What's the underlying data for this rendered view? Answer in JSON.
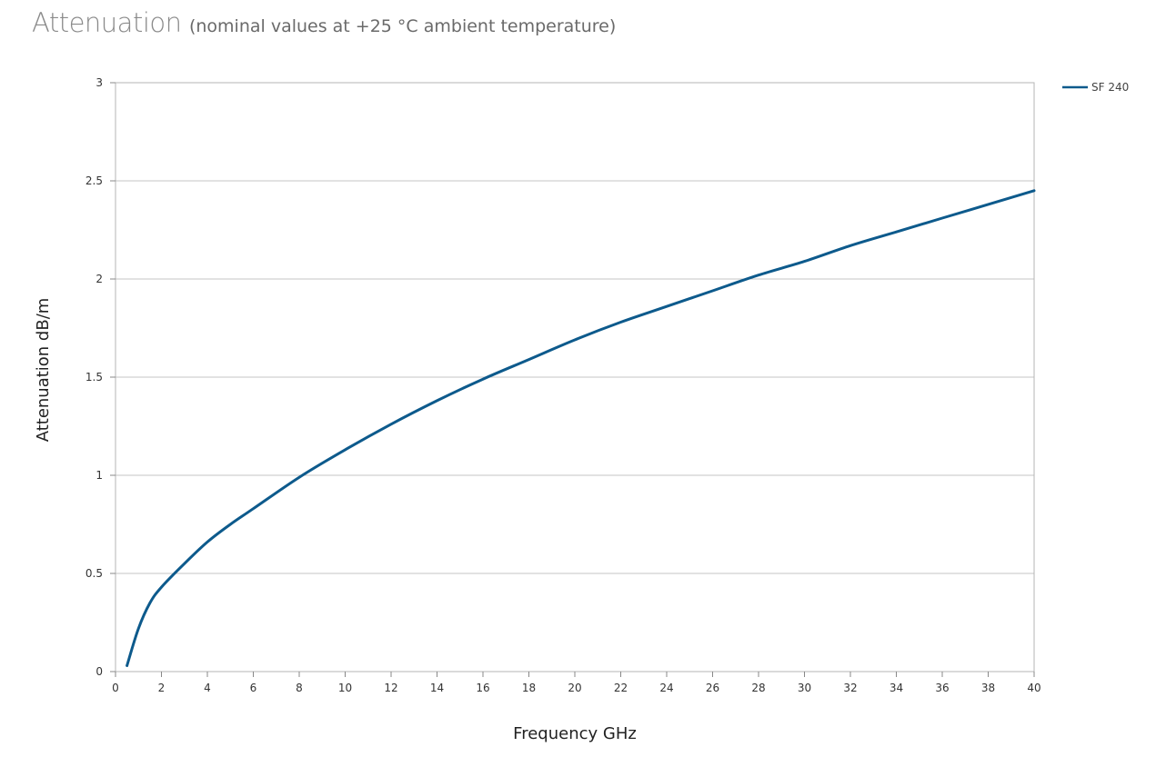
{
  "title": "Attenuation",
  "subtitle": "(nominal values at +25 °C ambient temperature)",
  "chart_data": {
    "type": "line",
    "title": "Attenuation",
    "subtitle": "(nominal values at +25 °C ambient temperature)",
    "xlabel": "Frequency GHz",
    "ylabel": "Attenuation dB/m",
    "xlim": [
      0,
      40
    ],
    "ylim": [
      0,
      3
    ],
    "xticks": [
      0,
      2,
      4,
      6,
      8,
      10,
      12,
      14,
      16,
      18,
      20,
      22,
      24,
      26,
      28,
      30,
      32,
      34,
      36,
      38,
      40
    ],
    "yticks": [
      "0",
      "0.5",
      "1",
      "1.5",
      "2",
      "2.5",
      "3"
    ],
    "ytick_values": [
      0,
      0.5,
      1,
      1.5,
      2,
      2.5,
      3
    ],
    "grid": "horizontal",
    "legend_position": "top-right",
    "series": [
      {
        "name": "SF 240",
        "color": "#0d5a8c",
        "x": [
          0.5,
          1,
          1.5,
          2,
          3,
          4,
          5,
          6,
          8,
          10,
          12,
          14,
          16,
          18,
          20,
          22,
          24,
          26,
          28,
          30,
          32,
          34,
          36,
          38,
          40
        ],
        "y": [
          0.03,
          0.22,
          0.35,
          0.43,
          0.55,
          0.66,
          0.75,
          0.83,
          0.99,
          1.13,
          1.26,
          1.38,
          1.49,
          1.59,
          1.69,
          1.78,
          1.86,
          1.94,
          2.02,
          2.09,
          2.17,
          2.24,
          2.31,
          2.38,
          2.45
        ]
      }
    ]
  }
}
